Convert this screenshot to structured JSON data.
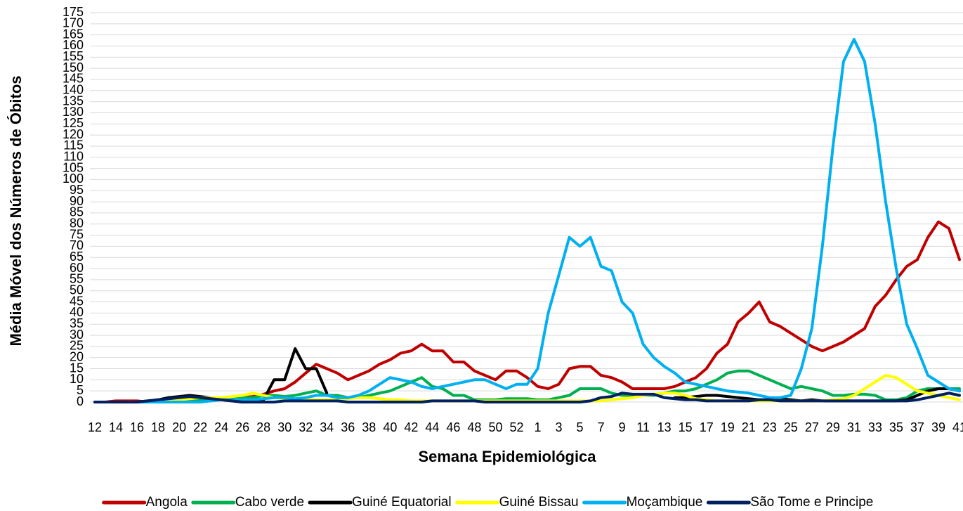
{
  "chart_data": {
    "type": "line",
    "x_label": "Semana Epidemiológica",
    "y_label": "Média Móvel dos Números de Óbitos",
    "categories": [
      "12",
      null,
      "14",
      null,
      "16",
      null,
      "18",
      null,
      "20",
      null,
      "22",
      null,
      "24",
      null,
      "26",
      null,
      "28",
      null,
      "30",
      null,
      "32",
      null,
      "34",
      null,
      "36",
      null,
      "38",
      null,
      "40",
      null,
      "42",
      null,
      "44",
      null,
      "46",
      null,
      "48",
      null,
      "50",
      null,
      "52",
      null,
      "1",
      null,
      "3",
      null,
      "5",
      null,
      "7",
      null,
      "9",
      null,
      "11",
      null,
      "13",
      null,
      "15",
      null,
      "17",
      null,
      "19",
      null,
      "21",
      null,
      "23",
      null,
      "25",
      null,
      "27",
      null,
      "29",
      null,
      "31",
      null,
      "33",
      null,
      "35",
      null,
      "37",
      null,
      "39",
      null,
      "41"
    ],
    "ylim": [
      0,
      175
    ],
    "yticks": [
      0,
      5,
      10,
      15,
      20,
      25,
      30,
      35,
      40,
      45,
      50,
      55,
      60,
      65,
      70,
      75,
      80,
      85,
      90,
      95,
      100,
      105,
      110,
      115,
      120,
      125,
      130,
      135,
      140,
      145,
      150,
      155,
      160,
      165,
      170,
      175
    ],
    "grid": true,
    "legend": "bottom",
    "series": [
      {
        "name": "Angola",
        "color": "#c00000",
        "values": [
          0,
          0,
          0.5,
          0.5,
          0.5,
          0,
          0,
          0.5,
          1,
          1,
          1,
          1,
          1.5,
          1.5,
          2,
          2.5,
          3.5,
          5,
          6,
          9,
          13,
          17,
          15,
          13,
          10,
          12,
          14,
          17,
          19,
          22,
          23,
          26,
          23,
          23,
          18,
          18,
          14,
          12,
          10,
          14,
          14,
          11,
          7,
          6,
          8,
          15,
          16,
          16,
          12,
          11,
          9,
          6,
          6,
          6,
          6,
          7,
          9,
          11,
          15,
          22,
          26,
          36,
          40,
          45,
          36,
          34,
          31,
          28,
          25,
          23,
          25,
          27,
          30,
          33,
          43,
          48,
          55,
          61,
          64,
          74,
          81,
          78,
          64
        ]
      },
      {
        "name": "Cabo verde",
        "color": "#00b050",
        "values": [
          0,
          0,
          0,
          0,
          0,
          0,
          0,
          0.5,
          1,
          1,
          1,
          1,
          1,
          1.5,
          2,
          2,
          3,
          3,
          2.5,
          3,
          4,
          5,
          3,
          3,
          2,
          2,
          3,
          4,
          5,
          7,
          9,
          11,
          7,
          6,
          3,
          3,
          1,
          1,
          1,
          1.5,
          1.5,
          1.5,
          1,
          1,
          2,
          3,
          6,
          6,
          6,
          4,
          3,
          3,
          3,
          3,
          4,
          5,
          5,
          6,
          8,
          10,
          13,
          14,
          14,
          12,
          10,
          8,
          6,
          7,
          6,
          5,
          3,
          3,
          3.5,
          3.5,
          3,
          1,
          1,
          2,
          5,
          6,
          6,
          6,
          6
        ]
      },
      {
        "name": "Guiné Equatorial",
        "color": "#000000",
        "values": [
          0,
          0,
          0,
          0,
          0,
          0.5,
          1,
          2,
          2.5,
          3,
          2.5,
          2,
          1,
          0.5,
          0,
          0,
          1,
          10,
          10,
          24,
          15,
          15,
          4,
          null,
          null,
          null,
          null,
          null,
          null,
          null,
          null,
          null,
          null,
          null,
          null,
          null,
          null,
          null,
          null,
          null,
          null,
          null,
          null,
          null,
          null,
          null,
          null,
          null,
          null,
          null,
          null,
          null,
          null,
          null,
          null,
          2,
          2,
          2.5,
          3,
          3,
          2.5,
          2,
          1.5,
          1,
          1,
          1.5,
          1,
          0.5,
          1,
          0.5,
          0.5,
          0.5,
          0.5,
          0.5,
          0.5,
          0.5,
          0.5,
          1,
          3,
          5,
          6,
          6,
          5
        ]
      },
      {
        "name": "Guiné Bissau",
        "color": "#ffff00",
        "values": [
          0,
          0,
          0,
          0,
          0,
          0,
          0,
          0.5,
          1,
          1.5,
          2,
          2,
          2,
          2.5,
          3,
          4,
          3,
          2,
          1.5,
          1,
          1,
          1,
          1,
          1,
          1.5,
          2,
          2,
          1.5,
          1,
          1,
          0.5,
          0.5,
          0.5,
          0.5,
          0.5,
          0.5,
          0.5,
          0.5,
          0.5,
          0.5,
          0.5,
          0.5,
          0.5,
          0.5,
          0.5,
          0.5,
          0.5,
          0.5,
          0.5,
          1,
          1.5,
          2,
          3,
          3.5,
          4,
          4,
          3,
          1.5,
          1,
          0.5,
          0.5,
          0.5,
          0.5,
          0.5,
          0.5,
          0.5,
          0.5,
          0.5,
          0.5,
          0.5,
          1,
          1.5,
          3,
          6,
          9,
          12,
          11,
          8,
          5,
          4,
          3,
          2,
          1
        ]
      },
      {
        "name": "Moçambique",
        "color": "#00b0f0",
        "values": [
          0,
          0,
          0,
          0,
          0,
          0,
          0,
          0,
          0,
          0,
          0,
          0.5,
          1,
          1,
          1,
          1,
          1.5,
          2,
          2,
          1.5,
          2,
          3,
          3,
          2,
          2,
          3,
          5,
          8,
          11,
          10,
          9,
          7,
          6,
          7,
          8,
          9,
          10,
          10,
          8,
          6,
          8,
          8,
          15,
          40,
          57,
          74,
          70,
          74,
          61,
          59,
          45,
          40,
          26,
          20,
          16,
          13,
          9,
          8,
          7,
          6,
          5,
          4.5,
          4,
          3,
          2,
          2,
          3,
          15,
          33,
          70,
          115,
          153,
          163,
          153,
          125,
          90,
          60,
          35,
          24,
          12,
          9,
          6,
          5
        ]
      },
      {
        "name": "São Tome e Principe",
        "color": "#002060",
        "values": [
          0,
          0,
          0,
          0,
          0,
          0.5,
          1,
          1.5,
          2,
          2.5,
          2,
          1.5,
          1,
          0.5,
          0,
          0,
          0,
          0,
          0.5,
          0.5,
          0.5,
          0.5,
          0.5,
          0.5,
          0,
          0,
          0,
          0,
          0,
          0,
          0,
          0,
          0.5,
          0.5,
          0.5,
          0.5,
          0.5,
          0,
          0,
          0,
          0,
          0,
          0,
          0,
          0,
          0,
          0,
          0.5,
          2,
          2.5,
          4,
          3.5,
          3.5,
          3.5,
          2,
          1.5,
          1,
          1,
          0.5,
          0.5,
          0.5,
          0.5,
          0.5,
          1,
          1,
          0.5,
          0.5,
          0.5,
          0.5,
          0.5,
          0.5,
          0.5,
          0.5,
          0.5,
          0.5,
          0.5,
          0.5,
          0.5,
          1,
          2,
          3,
          4,
          3
        ]
      }
    ]
  }
}
